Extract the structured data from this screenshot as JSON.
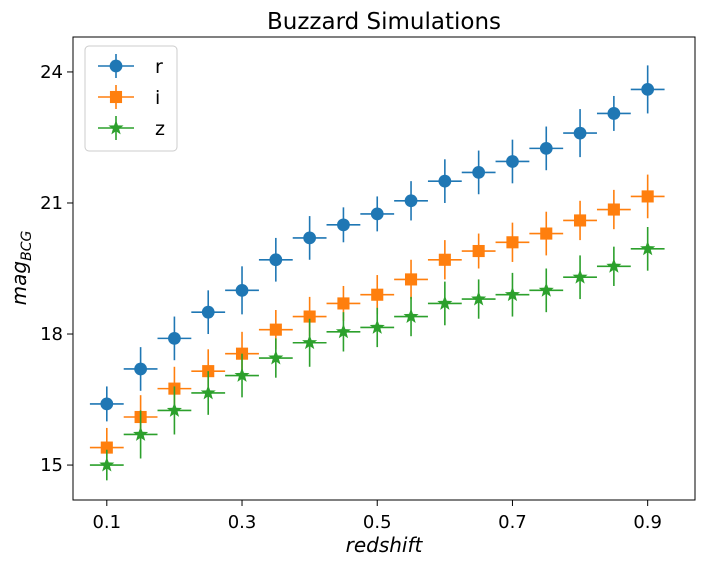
{
  "chart_data": {
    "type": "scatter",
    "title": "Buzzard Simulations",
    "xlabel": "redshift",
    "ylabel_main": "mag",
    "ylabel_sub": "BCG",
    "xlim": [
      0.05,
      0.97
    ],
    "ylim": [
      14.2,
      24.8
    ],
    "xticks": [
      0.1,
      0.3,
      0.5,
      0.7,
      0.9
    ],
    "xtick_labels": [
      "0.1",
      "0.3",
      "0.5",
      "0.7",
      "0.9"
    ],
    "yticks": [
      15,
      18,
      21,
      24
    ],
    "ytick_labels": [
      "15",
      "18",
      "21",
      "24"
    ],
    "x_error": 0.025,
    "legend_position": "top-left",
    "grid": false,
    "x": [
      0.1,
      0.15,
      0.2,
      0.25,
      0.3,
      0.35,
      0.4,
      0.45,
      0.5,
      0.55,
      0.6,
      0.65,
      0.7,
      0.75,
      0.8,
      0.85,
      0.9
    ],
    "series": [
      {
        "name": "r",
        "marker": "circle",
        "color": "#1f77b4",
        "values": [
          16.4,
          17.2,
          17.9,
          18.5,
          19.0,
          19.7,
          20.2,
          20.5,
          20.75,
          21.05,
          21.5,
          21.7,
          21.95,
          22.25,
          22.6,
          23.05,
          23.6
        ],
        "yerr": [
          0.4,
          0.5,
          0.5,
          0.5,
          0.55,
          0.5,
          0.5,
          0.4,
          0.4,
          0.45,
          0.5,
          0.5,
          0.5,
          0.5,
          0.55,
          0.4,
          0.55
        ]
      },
      {
        "name": "i",
        "marker": "square",
        "color": "#ff7f0e",
        "values": [
          15.4,
          16.1,
          16.75,
          17.15,
          17.55,
          18.1,
          18.4,
          18.7,
          18.9,
          19.25,
          19.7,
          19.9,
          20.1,
          20.3,
          20.6,
          20.85,
          21.15
        ],
        "yerr": [
          0.45,
          0.5,
          0.5,
          0.5,
          0.5,
          0.45,
          0.45,
          0.4,
          0.45,
          0.45,
          0.45,
          0.4,
          0.45,
          0.5,
          0.45,
          0.45,
          0.5
        ]
      },
      {
        "name": "z",
        "marker": "star",
        "color": "#2ca02c",
        "values": [
          15.0,
          15.7,
          16.25,
          16.65,
          17.05,
          17.45,
          17.8,
          18.05,
          18.15,
          18.4,
          18.7,
          18.8,
          18.9,
          19.0,
          19.3,
          19.55,
          19.95
        ],
        "yerr": [
          0.35,
          0.55,
          0.55,
          0.5,
          0.5,
          0.45,
          0.55,
          0.45,
          0.45,
          0.45,
          0.5,
          0.45,
          0.5,
          0.5,
          0.5,
          0.45,
          0.5
        ]
      }
    ]
  }
}
